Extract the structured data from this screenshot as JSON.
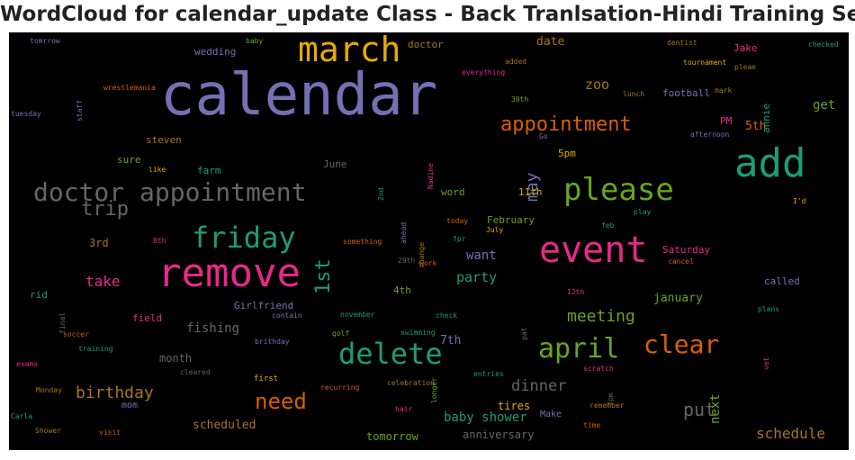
{
  "title": "WordCloud for calendar_update Class - Back Tranlsation-Hindi Training Set",
  "words": [
    {
      "text": "calendar",
      "color": "#7570b3"
    },
    {
      "text": "remove",
      "color": "#e7298a"
    },
    {
      "text": "add",
      "color": "#1b9e77"
    },
    {
      "text": "event",
      "color": "#e7298a"
    },
    {
      "text": "please",
      "color": "#66a61e"
    },
    {
      "text": "march",
      "color": "#e6ab02"
    },
    {
      "text": "doctor appointment",
      "color": "#666666"
    },
    {
      "text": "friday",
      "color": "#1b9e77"
    },
    {
      "text": "delete",
      "color": "#1b9e77"
    },
    {
      "text": "april",
      "color": "#66a61e"
    },
    {
      "text": "clear",
      "color": "#d95f02"
    },
    {
      "text": "appointment",
      "color": "#d95f02"
    },
    {
      "text": "trip",
      "color": "#666666"
    },
    {
      "text": "need",
      "color": "#d95f02"
    },
    {
      "text": "1st",
      "color": "#1b9e77"
    },
    {
      "text": "birthday",
      "color": "#a6761d"
    },
    {
      "text": "meeting",
      "color": "#66a61e"
    },
    {
      "text": "put",
      "color": "#666666"
    },
    {
      "text": "may",
      "color": "#7570b3"
    },
    {
      "text": "dinner",
      "color": "#666666"
    },
    {
      "text": "schedule",
      "color": "#a6761d"
    },
    {
      "text": "baby shower",
      "color": "#1b9e77"
    },
    {
      "text": "party",
      "color": "#1b9e77"
    },
    {
      "text": "take",
      "color": "#e7298a"
    },
    {
      "text": "zoo",
      "color": "#a6761d"
    },
    {
      "text": "want",
      "color": "#7570b3"
    },
    {
      "text": "next",
      "color": "#66a61e"
    },
    {
      "text": "get",
      "color": "#66a61e"
    },
    {
      "text": "fishing",
      "color": "#666666"
    },
    {
      "text": "january",
      "color": "#66a61e"
    },
    {
      "text": "scheduled",
      "color": "#a6761d"
    },
    {
      "text": "date",
      "color": "#a6761d"
    },
    {
      "text": "tomorrow",
      "color": "#66a61e"
    },
    {
      "text": "anniversary",
      "color": "#666666"
    },
    {
      "text": "7th",
      "color": "#7570b3"
    },
    {
      "text": "5th",
      "color": "#d95f02"
    },
    {
      "text": "3rd",
      "color": "#a6761d"
    },
    {
      "text": "month",
      "color": "#666666"
    },
    {
      "text": "tires",
      "color": "#e6ab02"
    },
    {
      "text": "Saturday",
      "color": "#e7298a"
    },
    {
      "text": "football",
      "color": "#7570b3"
    },
    {
      "text": "wedding",
      "color": "#7570b3"
    },
    {
      "text": "doctor",
      "color": "#a6761d"
    },
    {
      "text": "Girlfriend",
      "color": "#7570b3"
    },
    {
      "text": "field",
      "color": "#e7298a"
    },
    {
      "text": "rid",
      "color": "#1b9e77"
    },
    {
      "text": "mom",
      "color": "#7570b3"
    },
    {
      "text": "called",
      "color": "#7570b3"
    },
    {
      "text": "sure",
      "color": "#66a61e"
    },
    {
      "text": "farm",
      "color": "#1b9e77"
    },
    {
      "text": "steven",
      "color": "#a6761d"
    },
    {
      "text": "June",
      "color": "#666666"
    },
    {
      "text": "5pm",
      "color": "#e6ab02"
    },
    {
      "text": "11th",
      "color": "#e6ab02"
    },
    {
      "text": "4th",
      "color": "#66a61e"
    },
    {
      "text": "word",
      "color": "#66a61e"
    },
    {
      "text": "February",
      "color": "#66a61e"
    },
    {
      "text": "PM",
      "color": "#e7298a"
    },
    {
      "text": "Jake",
      "color": "#e7298a"
    },
    {
      "text": "annie",
      "color": "#1b9e77"
    },
    {
      "text": "Make",
      "color": "#7570b3"
    },
    {
      "text": "first",
      "color": "#e6ab02"
    },
    {
      "text": "tomrrow",
      "color": "#7570b3"
    },
    {
      "text": "baby",
      "color": "#66a61e"
    },
    {
      "text": "dentist",
      "color": "#a6761d"
    },
    {
      "text": "checked",
      "color": "#1b9e77"
    },
    {
      "text": "tournament",
      "color": "#e6ab02"
    },
    {
      "text": "added",
      "color": "#a6761d"
    },
    {
      "text": "everything",
      "color": "#e7298a"
    },
    {
      "text": "pleae",
      "color": "#a6761d"
    },
    {
      "text": "mark",
      "color": "#a6761d"
    },
    {
      "text": "wrestlemania",
      "color": "#d95f02"
    },
    {
      "text": "staff",
      "color": "#7570b3"
    },
    {
      "text": "tuesday",
      "color": "#7570b3"
    },
    {
      "text": "30th",
      "color": "#66a61e"
    },
    {
      "text": "lunch",
      "color": "#a6761d"
    },
    {
      "text": "afternoon",
      "color": "#7570b3"
    },
    {
      "text": "Go",
      "color": "#7570b3"
    },
    {
      "text": "like",
      "color": "#e6ab02"
    },
    {
      "text": "Nadine",
      "color": "#e7298a"
    },
    {
      "text": "2nd",
      "color": "#1b9e77"
    },
    {
      "text": "ahead",
      "color": "#7570b3"
    },
    {
      "text": "change",
      "color": "#a6761d"
    },
    {
      "text": "today",
      "color": "#d95f02"
    },
    {
      "text": "July",
      "color": "#e6ab02"
    },
    {
      "text": "fpr",
      "color": "#1b9e77"
    },
    {
      "text": "feb",
      "color": "#1b9e77"
    },
    {
      "text": "play",
      "color": "#1b9e77"
    },
    {
      "text": "I'd",
      "color": "#e6ab02"
    },
    {
      "text": "8th",
      "color": "#e7298a"
    },
    {
      "text": "something",
      "color": "#d95f02"
    },
    {
      "text": "29th",
      "color": "#666666"
    },
    {
      "text": "work",
      "color": "#d95f02"
    },
    {
      "text": "cancel",
      "color": "#d95f02"
    },
    {
      "text": "12th",
      "color": "#e7298a"
    },
    {
      "text": "final",
      "color": "#666666"
    },
    {
      "text": "contain",
      "color": "#7570b3"
    },
    {
      "text": "november",
      "color": "#1b9e77"
    },
    {
      "text": "check",
      "color": "#1b9e77"
    },
    {
      "text": "pat",
      "color": "#666666"
    },
    {
      "text": "plans",
      "color": "#1b9e77"
    },
    {
      "text": "soccer",
      "color": "#d95f02"
    },
    {
      "text": "brithday",
      "color": "#7570b3"
    },
    {
      "text": "golf",
      "color": "#66a61e"
    },
    {
      "text": "swimming",
      "color": "#1b9e77"
    },
    {
      "text": "training",
      "color": "#1b9e77"
    },
    {
      "text": "exams",
      "color": "#e7298a"
    },
    {
      "text": "cleared",
      "color": "#666666"
    },
    {
      "text": "longer",
      "color": "#66a61e"
    },
    {
      "text": "entries",
      "color": "#1b9e77"
    },
    {
      "text": "scratch",
      "color": "#e7298a"
    },
    {
      "text": "vet",
      "color": "#e7298a"
    },
    {
      "text": "Monday",
      "color": "#a6761d"
    },
    {
      "text": "recurring",
      "color": "#d95f02"
    },
    {
      "text": "celebration",
      "color": "#a6761d"
    },
    {
      "text": "7pm",
      "color": "#666666"
    },
    {
      "text": "Carla",
      "color": "#1b9e77"
    },
    {
      "text": "Shower",
      "color": "#a6761d"
    },
    {
      "text": "visit",
      "color": "#d95f02"
    },
    {
      "text": "hair",
      "color": "#e7298a"
    },
    {
      "text": "remember",
      "color": "#a6761d"
    },
    {
      "text": "time",
      "color": "#d95f02"
    }
  ]
}
